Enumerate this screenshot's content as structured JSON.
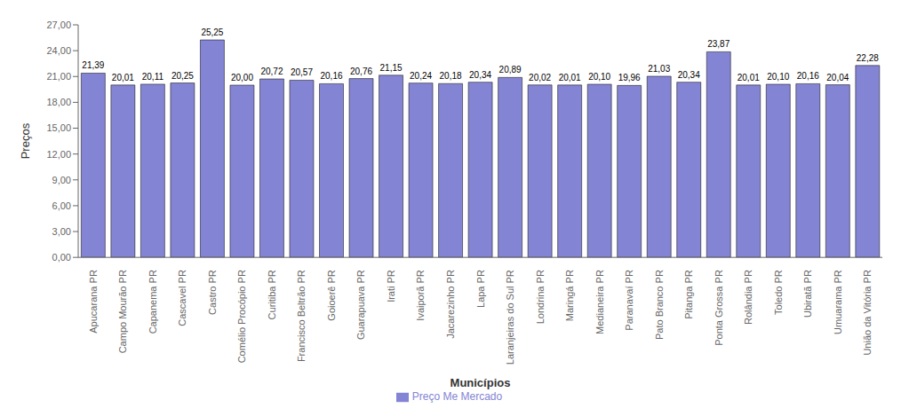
{
  "chart_data": {
    "type": "bar",
    "xlabel": "Municípios",
    "ylabel": "Preços",
    "categories": [
      "Apucarana PR",
      "Campo Mourão PR",
      "Capanema PR",
      "Cascavel PR",
      "Castro PR",
      "Comélio Procópio PR",
      "Curitiba PR",
      "Francisco Beltrão PR",
      "Goioerê PR",
      "Guarapuava PR",
      "Irati PR",
      "Ivaiporã PR",
      "Jacarezinho PR",
      "Lapa PR",
      "Laranjeiras do Sul PR",
      "Londrina PR",
      "Maringá PR",
      "Medianeira PR",
      "Paranavaí PR",
      "Pato Branco PR",
      "Pitanga PR",
      "Ponta Grossa PR",
      "Rolândia PR",
      "Toledo PR",
      "Ubiratã PR",
      "Umuarama PR",
      "União da Vitória PR"
    ],
    "series": [
      {
        "name": "Preço Me Mercado",
        "color": "#8484d4",
        "values": [
          21.39,
          20.01,
          20.11,
          20.25,
          25.25,
          20.0,
          20.72,
          20.57,
          20.16,
          20.76,
          21.15,
          20.24,
          20.18,
          20.34,
          20.89,
          20.02,
          20.01,
          20.1,
          19.96,
          21.03,
          20.34,
          23.87,
          20.01,
          20.1,
          20.16,
          20.04,
          22.28
        ],
        "value_labels": [
          "21,39",
          "20,01",
          "20,11",
          "20,25",
          "25,25",
          "20,00",
          "20,72",
          "20,57",
          "20,16",
          "20,76",
          "21,15",
          "20,24",
          "20,18",
          "20,34",
          "20,89",
          "20,02",
          "20,01",
          "20,10",
          "19,96",
          "21,03",
          "20,34",
          "23,87",
          "20,01",
          "20,10",
          "20,16",
          "20,04",
          "22,28"
        ]
      }
    ],
    "ylim": [
      0,
      27
    ],
    "yticks": [
      {
        "value": 0,
        "label": "0,00"
      },
      {
        "value": 3,
        "label": "3,00"
      },
      {
        "value": 6,
        "label": "6,00"
      },
      {
        "value": 9,
        "label": "9,00"
      },
      {
        "value": 12,
        "label": "12,00"
      },
      {
        "value": 15,
        "label": "15,00"
      },
      {
        "value": 18,
        "label": "18,00"
      },
      {
        "value": 21,
        "label": "21,00"
      },
      {
        "value": 24,
        "label": "24,00"
      },
      {
        "value": 27,
        "label": "27,00"
      }
    ],
    "grid": false,
    "data_labels": true,
    "legend": "bottom"
  }
}
